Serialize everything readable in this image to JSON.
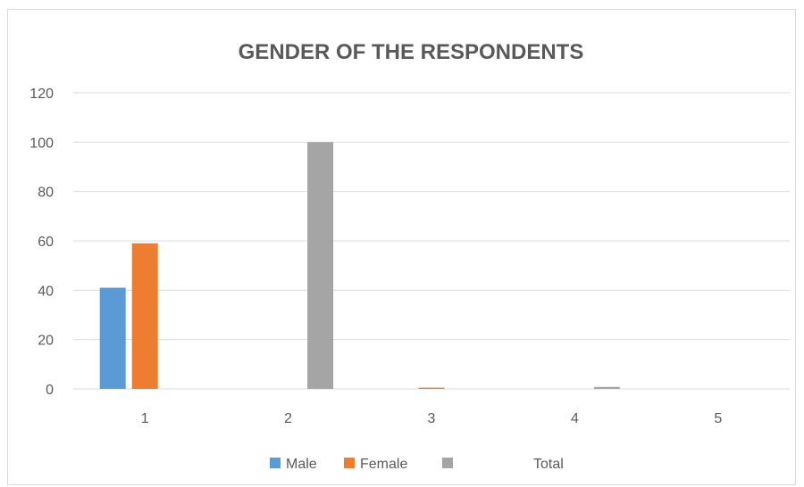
{
  "chart_data": {
    "type": "bar",
    "title": "GENDER OF THE RESPONDENTS",
    "xlabel": "",
    "ylabel": "",
    "categories": [
      "1",
      "2",
      "3",
      "4",
      "5"
    ],
    "ylim": [
      0,
      120
    ],
    "yticks": [
      "0",
      "20",
      "40",
      "60",
      "80",
      "100",
      "120"
    ],
    "grid": true,
    "legend_position": "bottom",
    "series": [
      {
        "name": "Male",
        "color": "#5b9bd5",
        "values": [
          41,
          0,
          0,
          0,
          0
        ]
      },
      {
        "name": "Female",
        "color": "#ed7d31",
        "values": [
          59,
          0,
          0.5,
          0,
          0
        ]
      },
      {
        "name": "Total",
        "color": "#a5a5a5",
        "values": [
          0,
          100,
          0,
          0.8,
          0
        ]
      }
    ]
  }
}
